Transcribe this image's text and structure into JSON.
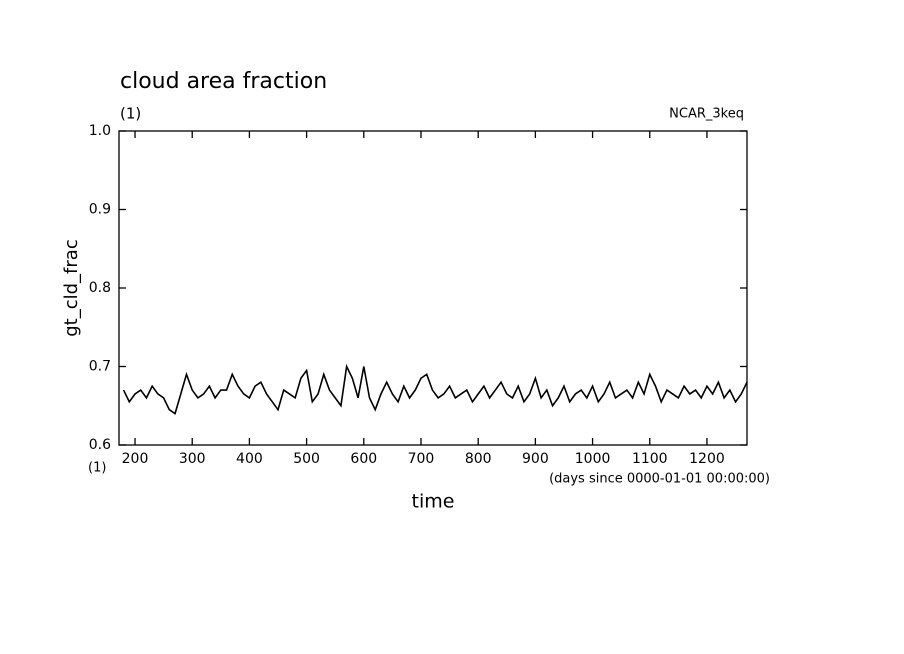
{
  "chart_data": {
    "type": "line",
    "title": "cloud area fraction",
    "subtitle": "(1)",
    "annotation": "NCAR_3keq",
    "x_unit": "(1)",
    "x_units_note": "(days since 0000-01-01 00:00:00)",
    "xlabel": "time",
    "ylabel": "gt_cld_frac",
    "xlim": [
      172,
      1270
    ],
    "ylim": [
      0.6,
      1
    ],
    "xticks": [
      200,
      300,
      400,
      500,
      600,
      700,
      800,
      900,
      1000,
      1100,
      1200
    ],
    "yticks": [
      0.6,
      0.7,
      0.8,
      0.9,
      {
        "value": 1,
        "label": "1.0"
      }
    ],
    "x": [
      180,
      190,
      200,
      210,
      220,
      230,
      240,
      250,
      260,
      270,
      280,
      290,
      300,
      310,
      320,
      330,
      340,
      350,
      360,
      370,
      380,
      390,
      400,
      410,
      420,
      430,
      440,
      450,
      460,
      470,
      480,
      490,
      500,
      510,
      520,
      530,
      540,
      550,
      560,
      570,
      580,
      590,
      600,
      610,
      620,
      630,
      640,
      650,
      660,
      670,
      680,
      690,
      700,
      710,
      720,
      730,
      740,
      750,
      760,
      770,
      780,
      790,
      800,
      810,
      820,
      830,
      840,
      850,
      860,
      870,
      880,
      890,
      900,
      910,
      920,
      930,
      940,
      950,
      960,
      970,
      980,
      990,
      1000,
      1010,
      1020,
      1030,
      1040,
      1050,
      1060,
      1070,
      1080,
      1090,
      1100,
      1110,
      1120,
      1130,
      1140,
      1150,
      1160,
      1170,
      1180,
      1190,
      1200,
      1210,
      1220,
      1230,
      1240,
      1250,
      1260,
      1270
    ],
    "series": [
      {
        "color": "#000000",
        "values": [
          0.67,
          0.655,
          0.665,
          0.67,
          0.66,
          0.675,
          0.665,
          0.66,
          0.645,
          0.64,
          0.665,
          0.69,
          0.67,
          0.66,
          0.665,
          0.675,
          0.66,
          0.67,
          0.67,
          0.69,
          0.675,
          0.665,
          0.66,
          0.675,
          0.68,
          0.665,
          0.655,
          0.645,
          0.67,
          0.665,
          0.66,
          0.685,
          0.695,
          0.655,
          0.665,
          0.69,
          0.67,
          0.66,
          0.65,
          0.7,
          0.685,
          0.66,
          0.7,
          0.66,
          0.645,
          0.665,
          0.68,
          0.665,
          0.655,
          0.675,
          0.66,
          0.67,
          0.685,
          0.69,
          0.67,
          0.66,
          0.665,
          0.675,
          0.66,
          0.665,
          0.67,
          0.655,
          0.665,
          0.675,
          0.66,
          0.67,
          0.68,
          0.665,
          0.66,
          0.675,
          0.655,
          0.665,
          0.685,
          0.66,
          0.67,
          0.65,
          0.66,
          0.675,
          0.655,
          0.665,
          0.67,
          0.66,
          0.675,
          0.655,
          0.665,
          0.68,
          0.66,
          0.665,
          0.67,
          0.66,
          0.68,
          0.665,
          0.69,
          0.675,
          0.655,
          0.67,
          0.665,
          0.66,
          0.675,
          0.665,
          0.67,
          0.66,
          0.675,
          0.665,
          0.68,
          0.66,
          0.67,
          0.655,
          0.665,
          0.68
        ]
      }
    ]
  }
}
